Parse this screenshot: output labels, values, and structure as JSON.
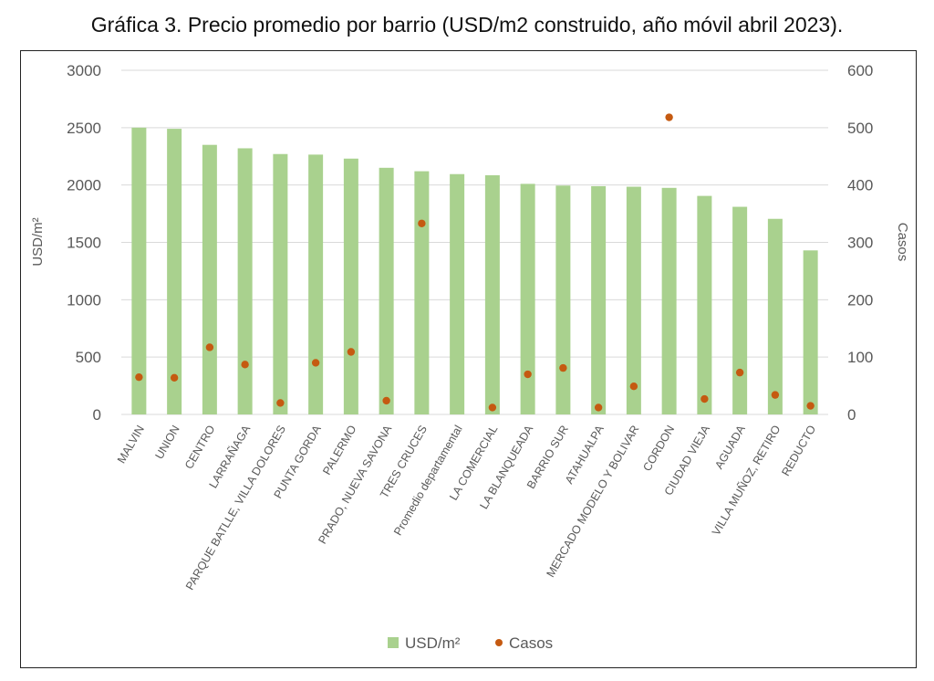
{
  "chart_data": {
    "type": "bar",
    "title": "Gráfica 3. Precio promedio por barrio (USD/m2 construido, año móvil abril 2023).",
    "ylabel": "USD/m²",
    "y2label": "Casos",
    "ylim": [
      0,
      3000
    ],
    "y2lim": [
      0,
      600
    ],
    "yticks": [
      "0",
      "500",
      "1000",
      "1500",
      "2000",
      "2500",
      "3000"
    ],
    "y2ticks": [
      "0",
      "100",
      "200",
      "300",
      "400",
      "500",
      "600"
    ],
    "grid": true,
    "legend_position": "bottom",
    "categories": [
      "MALVIN",
      "UNION",
      "CENTRO",
      "LARRAÑAGA",
      "PARQUE BATLLE, VILLA DOLORES",
      "PUNTA GORDA",
      "PALERMO",
      "PRADO, NUEVA SAVONA",
      "TRES CRUCES",
      "Promedio departamental",
      "LA COMERCIAL",
      "LA BLANQUEADA",
      "BARRIO SUR",
      "ATAHUALPA",
      "MERCADO MODELO Y BOLIVAR",
      "CORDON",
      "CIUDAD VIEJA",
      "AGUADA",
      "VILLA MUÑOZ, RETIRO",
      "REDUCTO"
    ],
    "series": [
      {
        "name": "USD/m²",
        "kind": "bar",
        "axis": "left",
        "color": "#a9d18e",
        "values": [
          2500,
          2490,
          2350,
          2320,
          2270,
          2265,
          2230,
          2150,
          2120,
          2095,
          2085,
          2010,
          1995,
          1990,
          1985,
          1975,
          1905,
          1810,
          1705,
          1430
        ]
      },
      {
        "name": "Casos",
        "kind": "scatter",
        "axis": "right",
        "color": "#c55a11",
        "values": [
          65,
          64,
          117,
          87,
          20,
          90,
          109,
          24,
          333,
          null,
          12,
          70,
          81,
          12,
          49,
          518,
          27,
          73,
          34,
          15
        ]
      }
    ]
  }
}
